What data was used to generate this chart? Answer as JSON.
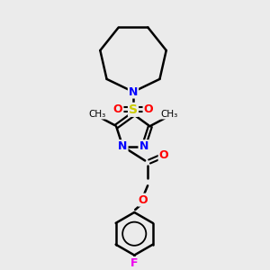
{
  "bg_color": "#ebebeb",
  "atom_colors": {
    "N": "#0000ff",
    "O": "#ff0000",
    "S": "#cccc00",
    "F": "#ee00ee",
    "C": "#000000"
  },
  "bond_color": "#000000",
  "figsize": [
    3.0,
    3.0
  ],
  "dpi": 100
}
